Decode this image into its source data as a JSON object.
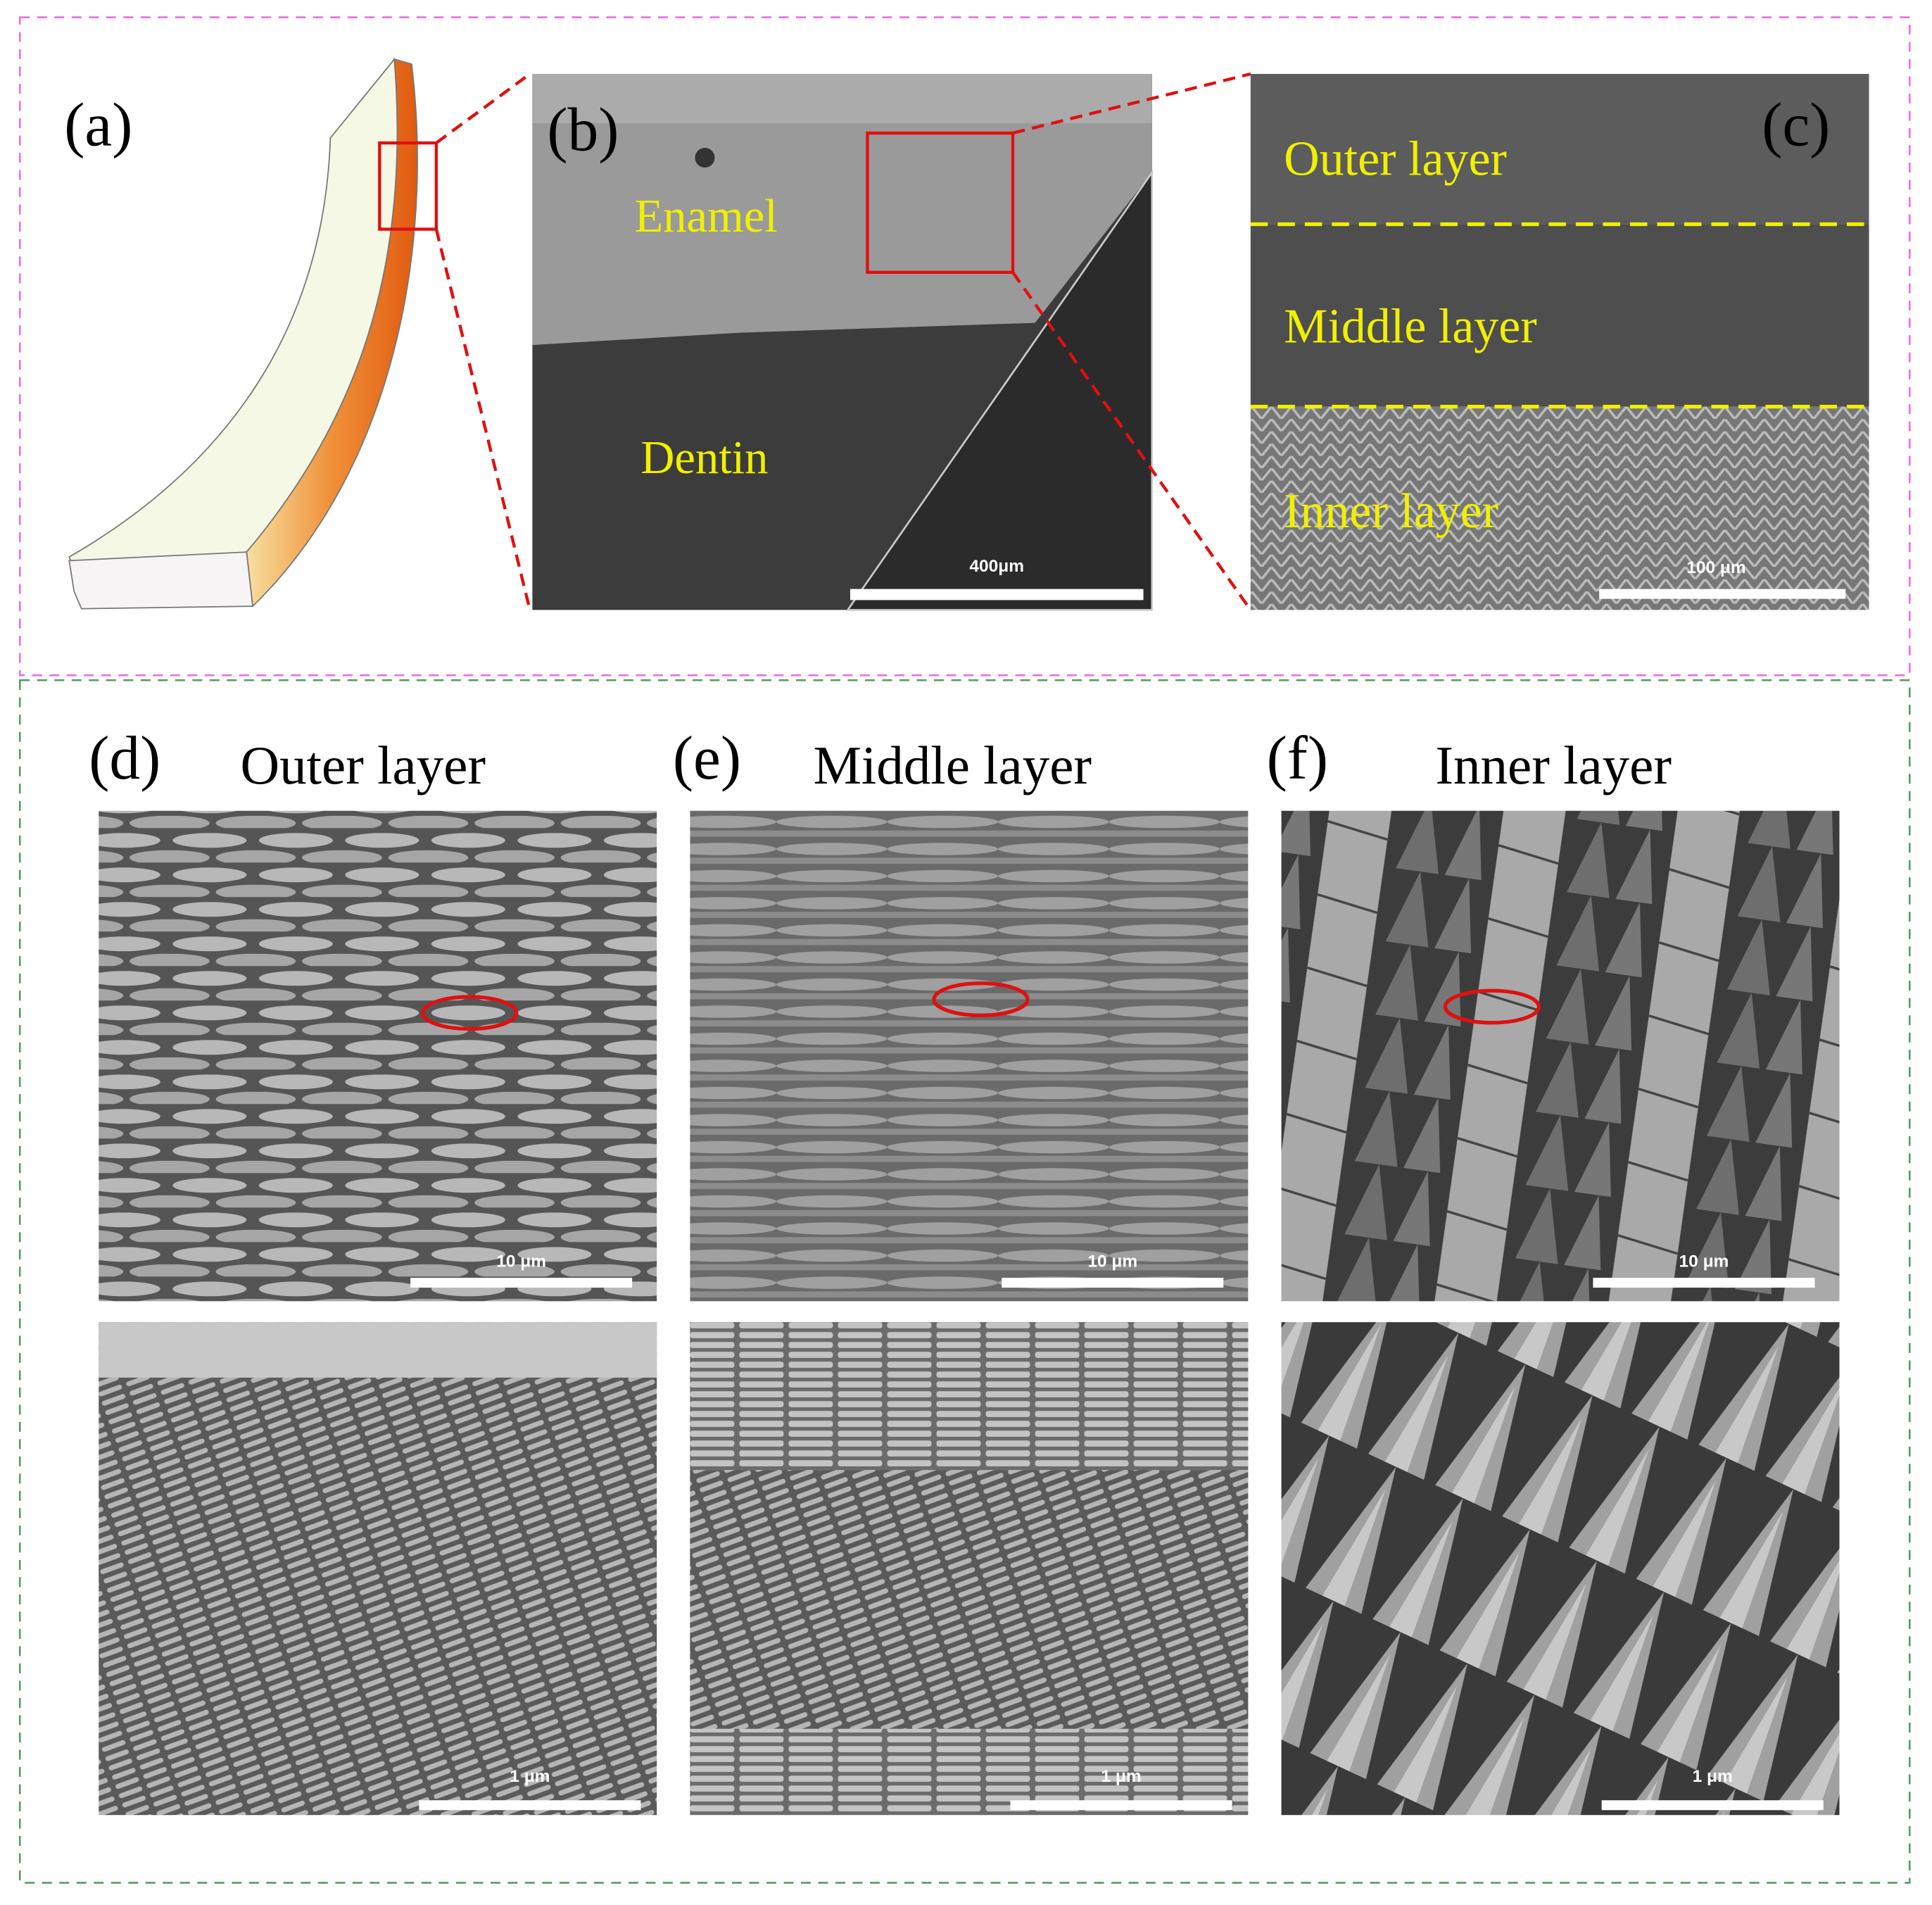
{
  "top": {
    "a": {
      "label": "(a)"
    },
    "b": {
      "label": "(b)",
      "enamel": "Enamel",
      "dentin": "Dentin",
      "scale_bar": "400μm"
    },
    "c": {
      "label": "(c)",
      "layers": [
        "Outer layer",
        "Middle layer",
        "Inner layer"
      ],
      "scale_bar": "100 μm"
    }
  },
  "bottom": {
    "panels": [
      {
        "label": "(d)",
        "title": "Outer layer",
        "scale_bar_low": "10 μm",
        "scale_bar_high": "1 μm"
      },
      {
        "label": "(e)",
        "title": "Middle layer",
        "scale_bar_low": "10 μm",
        "scale_bar_high": "1 μm"
      },
      {
        "label": "(f)",
        "title": "Inner layer",
        "scale_bar_low": "10 μm",
        "scale_bar_high": "1 μm"
      }
    ]
  }
}
